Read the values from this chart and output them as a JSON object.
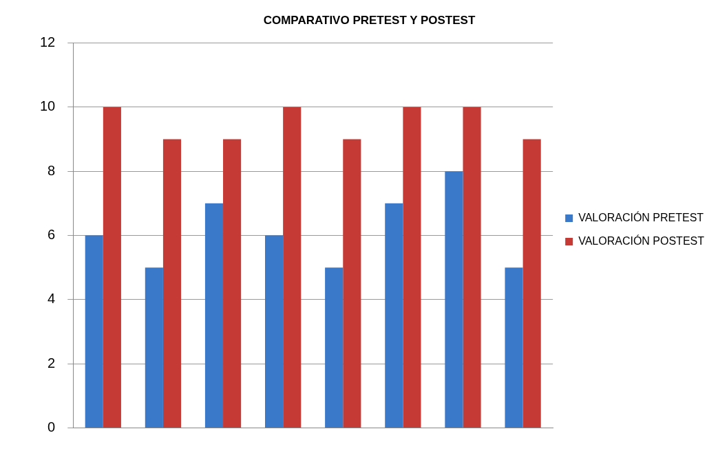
{
  "chart_data": {
    "type": "bar",
    "title": "COMPARATIVO PRETEST Y POSTEST",
    "categories": [
      null,
      null,
      null,
      null,
      null,
      null,
      null,
      null
    ],
    "series": [
      {
        "name": "VALORACIÓN PRETEST",
        "color": "#3a78c9",
        "values": [
          6,
          5,
          7,
          6,
          5,
          7,
          8,
          5
        ]
      },
      {
        "name": "VALORACIÓN POSTEST",
        "color": "#c63a36",
        "values": [
          10,
          9,
          9,
          10,
          9,
          10,
          10,
          9
        ]
      }
    ],
    "ylim": [
      0,
      12
    ],
    "yticks": [
      0,
      2,
      4,
      6,
      8,
      10,
      12
    ],
    "grid": "y",
    "legend": "right"
  }
}
